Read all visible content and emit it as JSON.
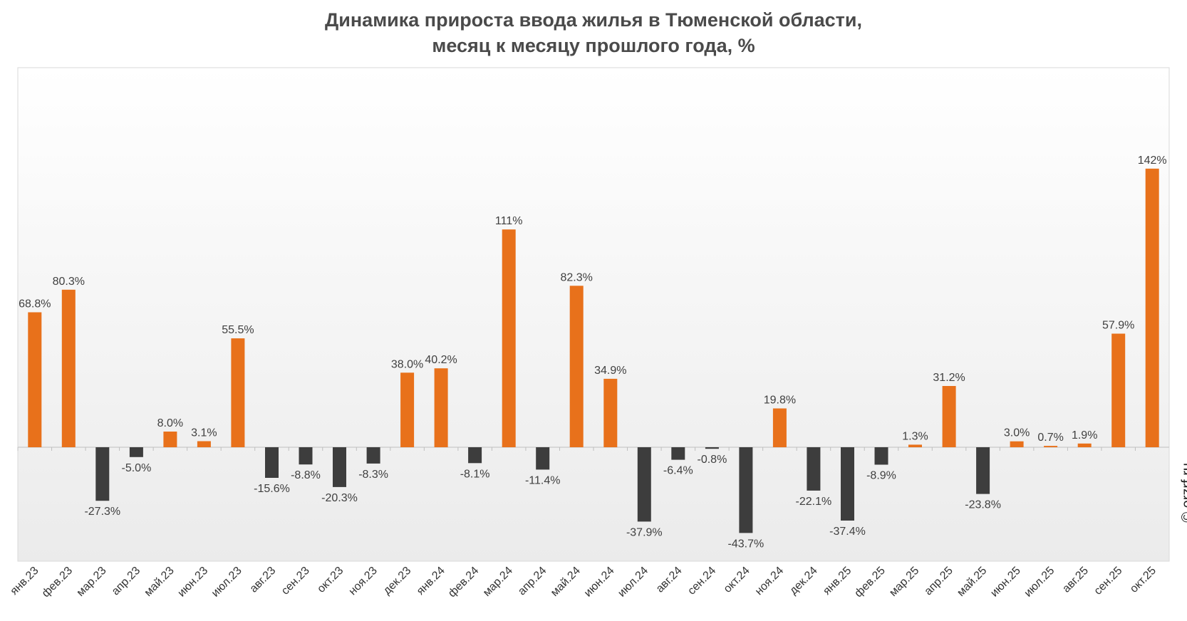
{
  "title_line1": "Динамика прироста ввода жилья в Тюменской области,",
  "title_line2": "месяц к месяцу прошлого года, %",
  "credit": "© erzrf.ru",
  "colors": {
    "positive": "#e8711b",
    "negative": "#3d3d3d"
  },
  "chart_data": {
    "type": "bar",
    "categories": [
      "янв.23",
      "фев.23",
      "мар.23",
      "апр.23",
      "май.23",
      "июн.23",
      "июл.23",
      "авг.23",
      "сен.23",
      "окт.23",
      "ноя.23",
      "дек.23",
      "янв.24",
      "фев.24",
      "мар.24",
      "апр.24",
      "май.24",
      "июн.24",
      "июл.24",
      "авг.24",
      "сен.24",
      "окт.24",
      "ноя.24",
      "дек.24",
      "янв.25",
      "фев.25",
      "мар.25",
      "апр.25",
      "май.25",
      "июн.25",
      "июл.25",
      "авг.25",
      "сен.25",
      "окт.25"
    ],
    "values": [
      68.8,
      80.3,
      -27.3,
      -5.0,
      8.0,
      3.1,
      55.5,
      -15.6,
      -8.8,
      -20.3,
      -8.3,
      38.0,
      40.2,
      -8.1,
      111,
      -11.4,
      82.3,
      34.9,
      -37.9,
      -6.4,
      -0.8,
      -43.7,
      19.8,
      -22.1,
      -37.4,
      -8.9,
      1.3,
      31.2,
      -23.8,
      3.0,
      0.7,
      1.9,
      57.9,
      142
    ],
    "labels": [
      "68.8%",
      "80.3%",
      "-27.3%",
      "-5.0%",
      "8.0%",
      "3.1%",
      "55.5%",
      "-15.6%",
      "-8.8%",
      "-20.3%",
      "-8.3%",
      "38.0%",
      "40.2%",
      "-8.1%",
      "111%",
      "-11.4%",
      "82.3%",
      "34.9%",
      "-37.9%",
      "-6.4%",
      "-0.8%",
      "-43.7%",
      "19.8%",
      "-22.1%",
      "-37.4%",
      "-8.9%",
      "1.3%",
      "31.2%",
      "-23.8%",
      "3.0%",
      "0.7%",
      "1.9%",
      "57.9%",
      "142%"
    ],
    "ylim": [
      -60,
      200
    ]
  }
}
